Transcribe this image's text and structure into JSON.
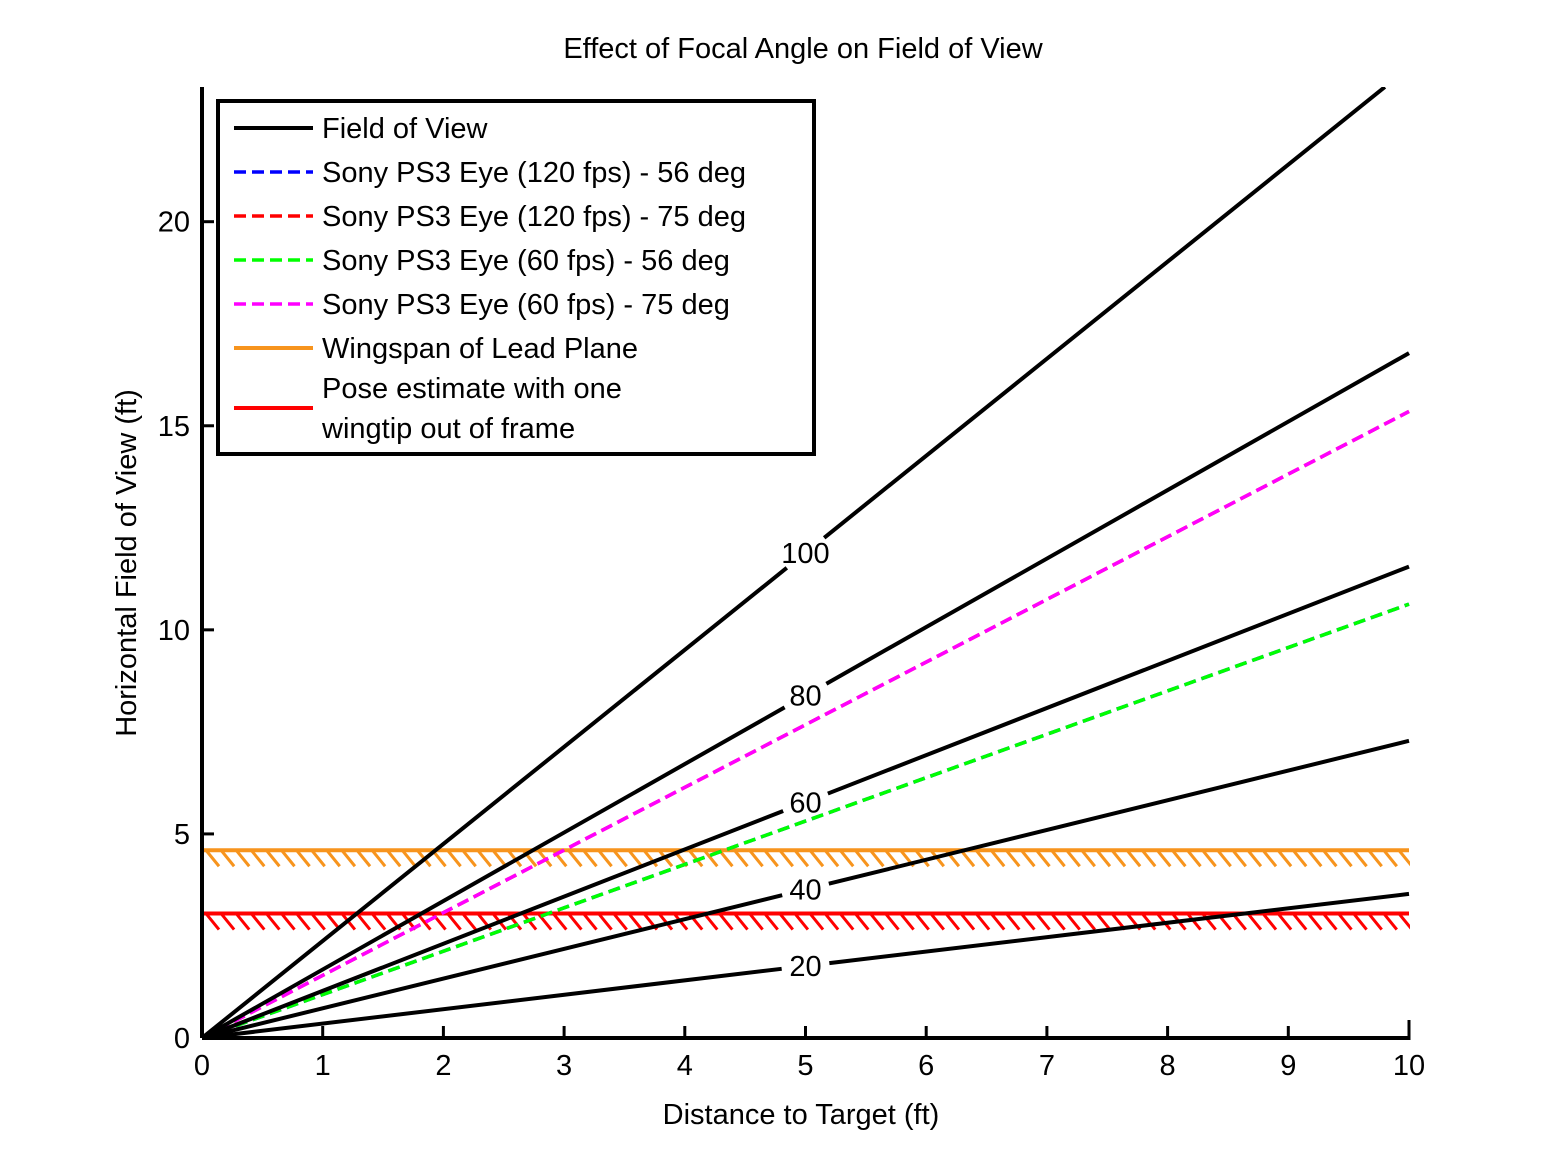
{
  "chart_data": {
    "type": "line",
    "title": "Effect of Focal Angle on Field of View",
    "xlabel": "Distance to Target  (ft)",
    "ylabel": "Horizontal Field of View  (ft)",
    "xlim": [
      0,
      10
    ],
    "ylim": [
      0,
      23.3
    ],
    "xticks": [
      0,
      1,
      2,
      3,
      4,
      5,
      6,
      7,
      8,
      9,
      10
    ],
    "yticks": [
      0,
      5,
      10,
      15,
      20
    ],
    "grid": false,
    "legend_position": "top-left",
    "fov_curves": {
      "legend_name": "Field of View",
      "color": "#000000",
      "angles_deg": [
        20,
        40,
        60,
        80,
        100
      ],
      "labels": [
        "20",
        "40",
        "60",
        "80",
        "100"
      ],
      "label_x": [
        5,
        5,
        5,
        5,
        5
      ],
      "series": [
        {
          "angle": 20,
          "x": [
            0,
            10
          ],
          "y": [
            0,
            3.53
          ]
        },
        {
          "angle": 40,
          "x": [
            0,
            10
          ],
          "y": [
            0,
            7.28
          ]
        },
        {
          "angle": 60,
          "x": [
            0,
            10
          ],
          "y": [
            0,
            11.55
          ]
        },
        {
          "angle": 80,
          "x": [
            0,
            10
          ],
          "y": [
            0,
            16.78
          ]
        },
        {
          "angle": 100,
          "x": [
            0,
            9.8
          ],
          "y": [
            0,
            23.3
          ]
        }
      ]
    },
    "camera_series": [
      {
        "name": "Sony PS3 Eye (120 fps) - 56 deg",
        "color": "#0000ff",
        "style": "dashed",
        "x": [
          0,
          10
        ],
        "y": [
          0,
          10.63
        ]
      },
      {
        "name": "Sony PS3 Eye (120 fps) - 75 deg",
        "color": "#ff0000",
        "style": "dashed",
        "x": [
          0,
          10
        ],
        "y": [
          0,
          15.35
        ]
      },
      {
        "name": "Sony PS3 Eye (60 fps) - 56 deg",
        "color": "#00ff00",
        "style": "dashed",
        "x": [
          0,
          10
        ],
        "y": [
          0,
          10.63
        ]
      },
      {
        "name": "Sony PS3 Eye (60 fps) - 75 deg",
        "color": "#ff00ff",
        "style": "dashed",
        "x": [
          0,
          10
        ],
        "y": [
          0,
          15.35
        ]
      }
    ],
    "threshold_series": [
      {
        "name": "Wingspan of Lead Plane",
        "color": "#f7941d",
        "style": "solid-hatched",
        "y": 4.6
      },
      {
        "name_lines": [
          "Pose estimate with one",
          "wingtip out of frame"
        ],
        "color": "#ff0000",
        "style": "solid-hatched",
        "y": 3.05
      }
    ]
  }
}
